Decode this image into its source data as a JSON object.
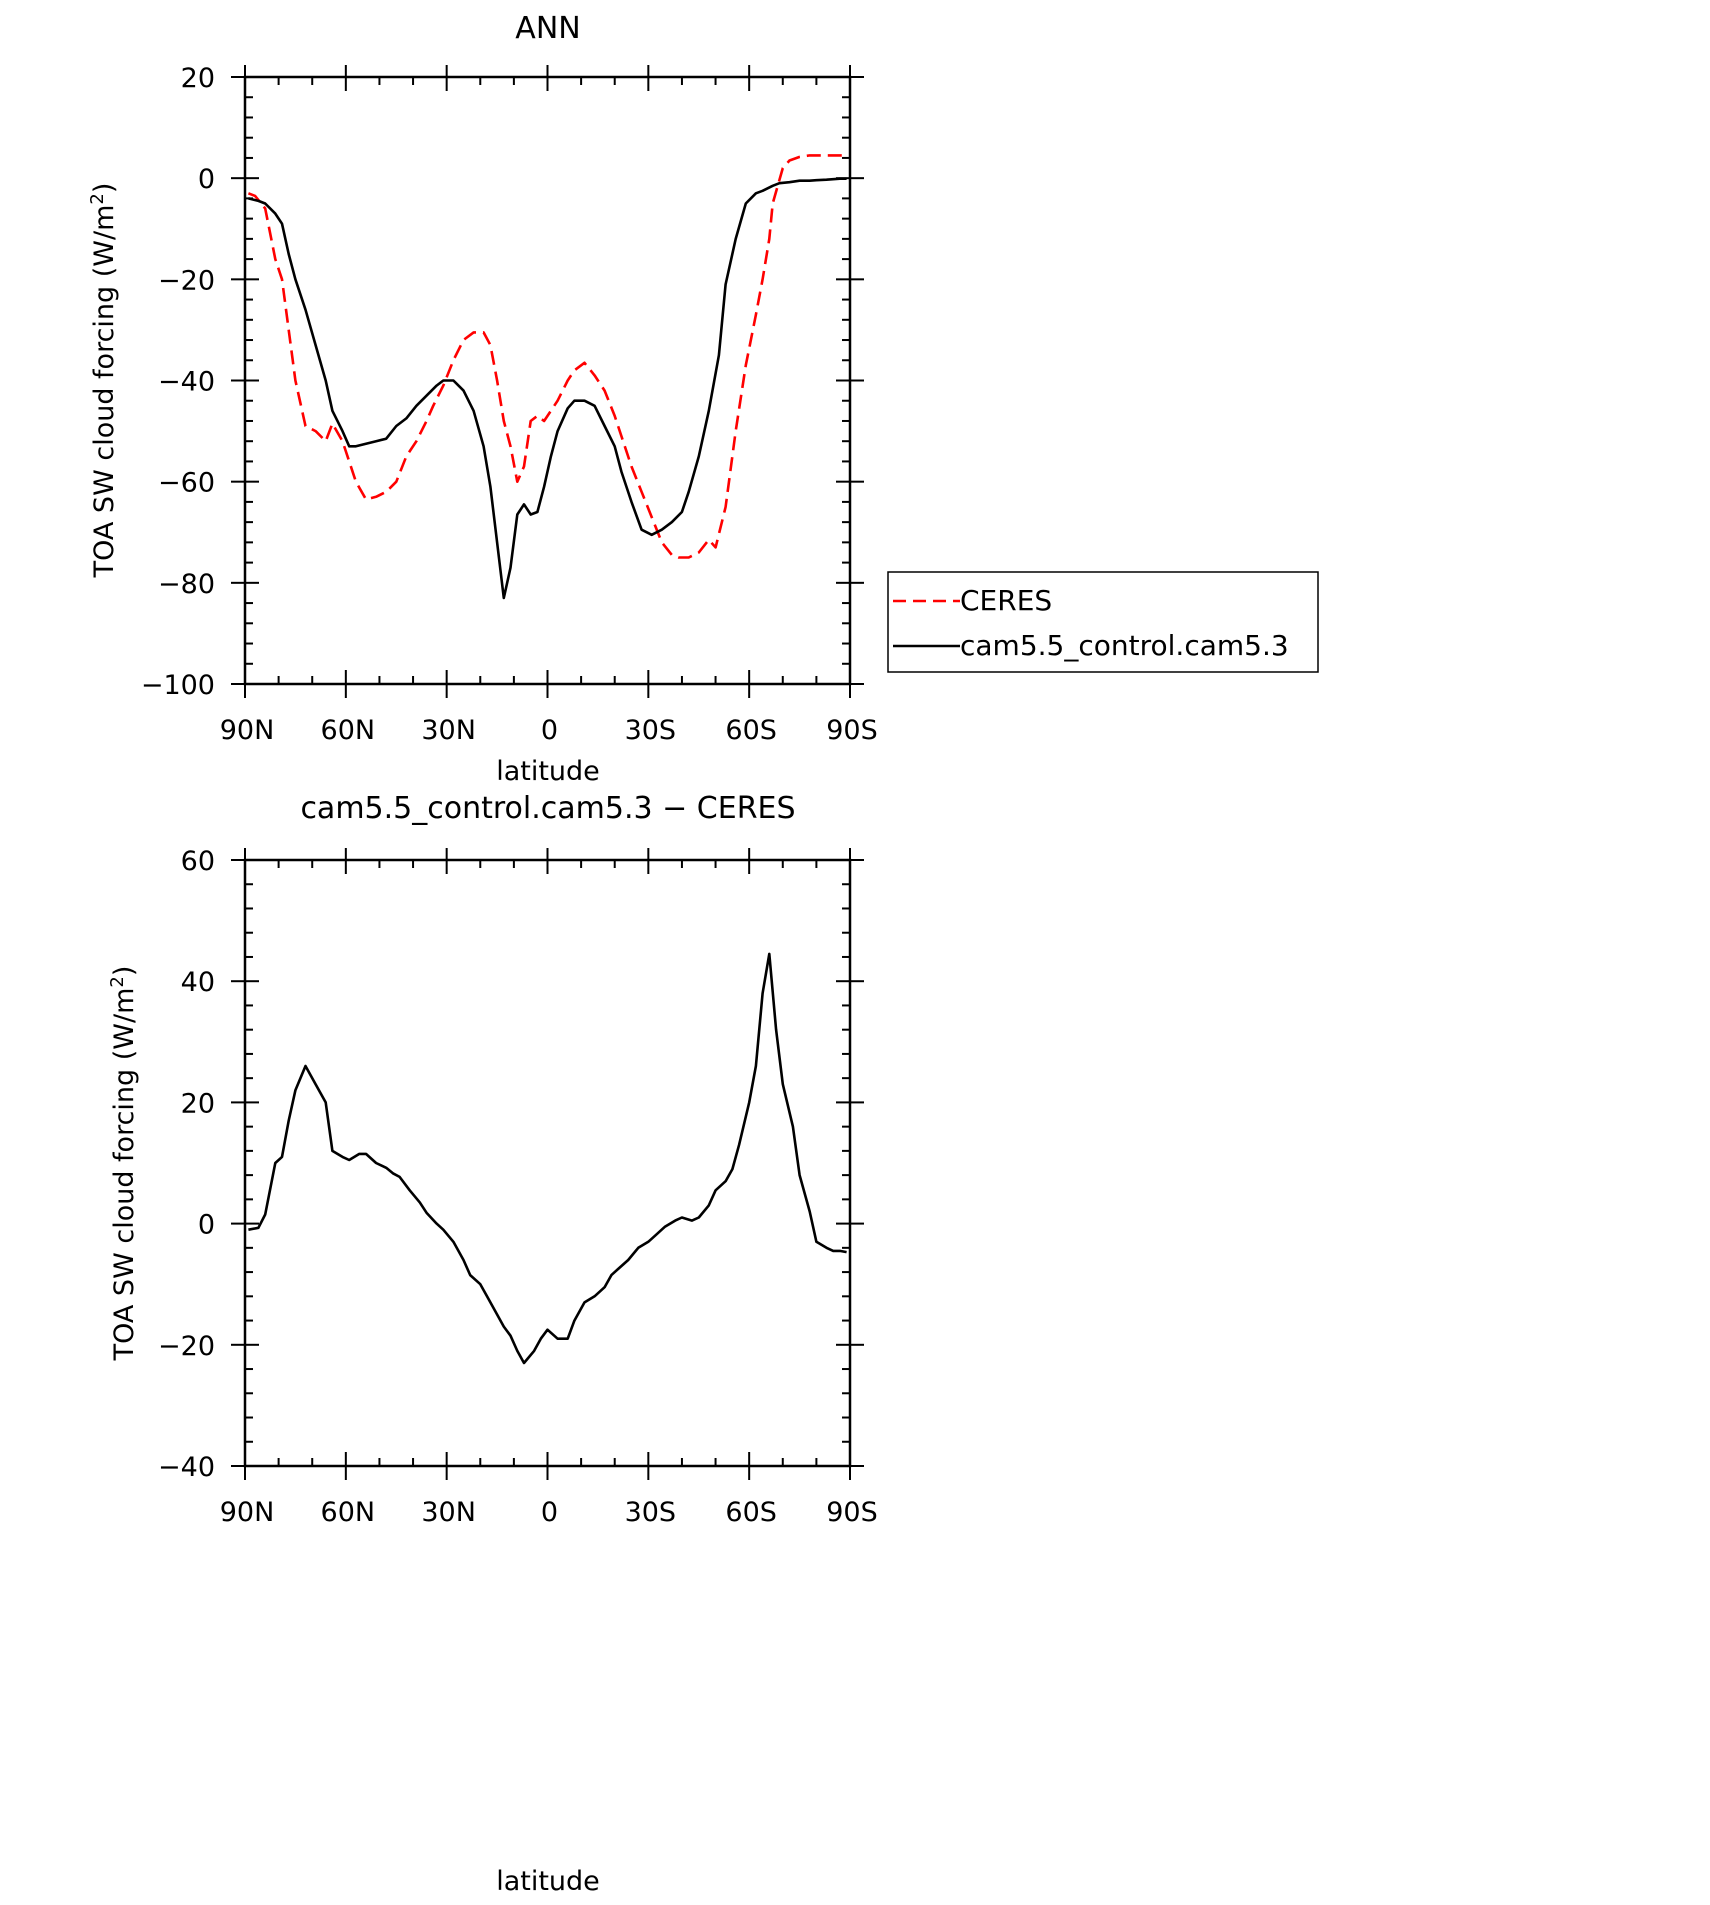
{
  "chart_data": [
    {
      "type": "line",
      "title": "ANN",
      "xlabel": "latitude",
      "ylabel": "TOA SW cloud forcing (W/m",
      "ylabel_sup": "2",
      "ylabel_tail": ")",
      "xlim": [
        90,
        -90
      ],
      "ylim": [
        -100,
        20
      ],
      "xticks": [
        90,
        60,
        30,
        0,
        -30,
        -60,
        -90
      ],
      "xtick_labels": [
        "90N",
        "60N",
        "30N",
        "0",
        "30S",
        "60S",
        "90S"
      ],
      "yticks": [
        20,
        0,
        -20,
        -40,
        -60,
        -80,
        -100
      ],
      "ytick_labels": [
        "20",
        "0",
        "−20",
        "−40",
        "−60",
        "−80",
        "−100"
      ],
      "legend_position": "right",
      "series": [
        {
          "name": "CERES",
          "style": "dashed",
          "color": "#ff0000",
          "x": [
            89,
            87,
            84,
            81,
            79,
            77,
            75,
            72,
            69,
            66,
            64,
            61,
            59,
            57,
            54,
            51,
            48,
            45,
            42,
            39,
            36,
            34,
            31,
            28,
            25,
            22,
            19,
            17,
            15,
            13,
            11,
            9,
            7,
            5,
            3,
            1,
            -1,
            -3,
            -6,
            -8,
            -11,
            -14,
            -17,
            -20,
            -22,
            -25,
            -28,
            -31,
            -34,
            -37,
            -39,
            -42,
            -45,
            -48,
            -50,
            -53,
            -56,
            -59,
            -62,
            -64,
            -66,
            -67,
            -70,
            -72,
            -75,
            -78,
            -80,
            -83,
            -85,
            -87,
            -89
          ],
          "y": [
            -3,
            -3.5,
            -6,
            -16,
            -20,
            -30,
            -40,
            -49,
            -50,
            -52,
            -48.5,
            -52,
            -56,
            -60,
            -63.5,
            -63,
            -62,
            -60,
            -55,
            -52,
            -48,
            -45,
            -41,
            -36,
            -32,
            -30.5,
            -30.5,
            -33,
            -40,
            -48,
            -53,
            -60,
            -57,
            -48,
            -47,
            -48,
            -46,
            -44,
            -40,
            -38,
            -36.5,
            -39,
            -42,
            -47,
            -51,
            -57,
            -62,
            -67,
            -72,
            -74.5,
            -75,
            -75,
            -74,
            -71.5,
            -73,
            -65,
            -50,
            -37,
            -27,
            -20,
            -12,
            -5,
            2,
            3.5,
            4.2,
            4.5,
            4.5,
            4.5,
            4.5,
            4.5,
            4.5
          ]
        },
        {
          "name": "cam5.5_control.cam5.3",
          "style": "solid",
          "color": "#000000",
          "x": [
            89,
            86,
            84,
            81,
            79,
            77,
            75,
            72,
            69,
            66,
            64,
            61,
            59,
            57,
            54,
            51,
            48,
            45,
            42,
            39,
            36,
            33,
            31,
            28,
            25,
            22,
            19,
            17,
            15,
            13,
            11,
            9,
            7,
            5,
            3,
            1,
            -1,
            -3,
            -6,
            -8,
            -11,
            -14,
            -17,
            -20,
            -22,
            -25,
            -28,
            -31,
            -34,
            -37,
            -40,
            -42,
            -45,
            -48,
            -51,
            -53,
            -56,
            -59,
            -62,
            -64,
            -67,
            -69,
            -72,
            -75,
            -78,
            -80,
            -83,
            -85,
            -87,
            -89
          ],
          "y": [
            -4,
            -4.5,
            -5,
            -7,
            -9,
            -15,
            -20,
            -26,
            -33,
            -40,
            -46,
            -50,
            -53,
            -53,
            -52.5,
            -52,
            -51.5,
            -49,
            -47.5,
            -45,
            -43,
            -41,
            -40,
            -40,
            -42,
            -46,
            -53,
            -61,
            -72,
            -83,
            -77,
            -66.5,
            -64.5,
            -66.5,
            -66,
            -61,
            -55,
            -50,
            -45.5,
            -44,
            -44,
            -45,
            -49,
            -53,
            -58,
            -64,
            -69.5,
            -70.5,
            -69.5,
            -68,
            -66,
            -62,
            -55,
            -46,
            -35,
            -21,
            -12,
            -5,
            -3,
            -2.5,
            -1.5,
            -1,
            -0.8,
            -0.5,
            -0.5,
            -0.4,
            -0.3,
            -0.2,
            -0.1,
            -0.1
          ]
        }
      ]
    },
    {
      "type": "line",
      "title": "cam5.5_control.cam5.3 − CERES",
      "xlabel": "latitude",
      "ylabel": "TOA SW cloud forcing (W/m",
      "ylabel_sup": "2",
      "ylabel_tail": ")",
      "xlim": [
        90,
        -90
      ],
      "ylim": [
        -40,
        60
      ],
      "xticks": [
        90,
        60,
        30,
        0,
        -30,
        -60,
        -90
      ],
      "xtick_labels": [
        "90N",
        "60N",
        "30N",
        "0",
        "30S",
        "60S",
        "90S"
      ],
      "yticks": [
        60,
        40,
        20,
        0,
        -20,
        -40
      ],
      "ytick_labels": [
        "60",
        "40",
        "20",
        "0",
        "−20",
        "−40"
      ],
      "series": [
        {
          "style": "solid",
          "color": "#000000",
          "x": [
            89,
            86,
            84,
            81,
            79,
            77,
            75,
            72,
            69,
            66,
            64,
            61,
            59,
            56,
            54,
            51,
            48,
            46,
            44,
            41,
            38,
            36,
            33,
            31,
            28,
            25,
            23,
            20,
            18,
            15,
            13,
            11,
            9,
            7,
            4,
            2,
            0,
            -3,
            -6,
            -8,
            -11,
            -14,
            -17,
            -19,
            -21,
            -24,
            -27,
            -30,
            -32,
            -35,
            -38,
            -40,
            -43,
            -45,
            -48,
            -50,
            -53,
            -55,
            -57,
            -60,
            -62,
            -64,
            -66,
            -68,
            -70,
            -73,
            -75,
            -78,
            -80,
            -83,
            -85,
            -87,
            -89
          ],
          "y": [
            -1,
            -0.7,
            1.5,
            10,
            11,
            17,
            22,
            26,
            23,
            20,
            12,
            11,
            10.5,
            11.5,
            11.5,
            10,
            9.2,
            8.3,
            7.7,
            5.5,
            3.5,
            1.8,
            0,
            -1,
            -3,
            -6,
            -8.5,
            -10,
            -12,
            -15,
            -17,
            -18.5,
            -21,
            -23,
            -21,
            -19,
            -17.5,
            -19,
            -19,
            -16,
            -13,
            -12,
            -10.5,
            -8.5,
            -7.5,
            -6,
            -4,
            -3,
            -2,
            -0.5,
            0.5,
            1,
            0.5,
            1,
            3,
            5.5,
            7,
            9,
            13,
            20,
            26,
            38,
            44.5,
            32,
            23,
            16,
            8,
            2,
            -3,
            -4,
            -4.5,
            -4.5,
            -4.7
          ]
        }
      ]
    }
  ]
}
